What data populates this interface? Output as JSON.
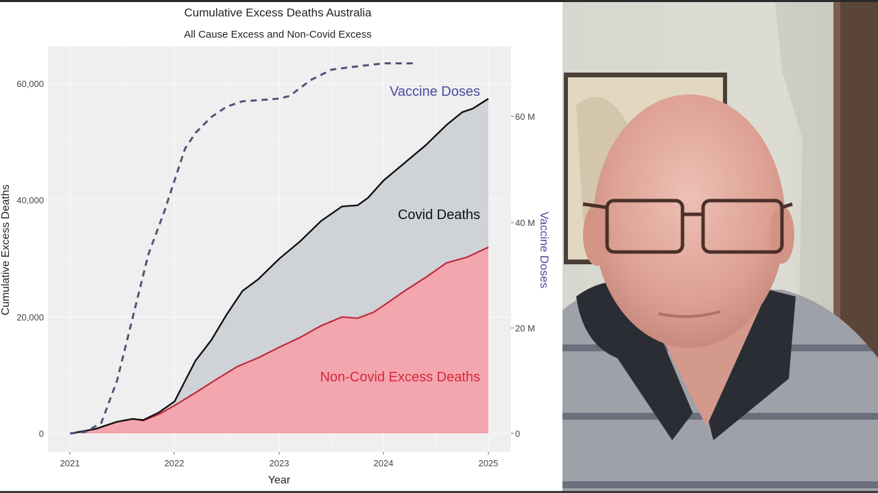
{
  "chart_data": {
    "type": "area",
    "title": "Cumulative Excess Deaths Australia",
    "subtitle": "All Cause Excess and Non-Covid Excess",
    "xlabel": "Year",
    "ylabel": "Cumulative Excess Deaths",
    "y2label": "Vaccine Doses",
    "x_ticks": [
      "2021",
      "2022",
      "2023",
      "2024",
      "2025"
    ],
    "y_ticks": [
      "0",
      "20,000",
      "40,000",
      "60,000"
    ],
    "y2_ticks": [
      "0",
      "20 M",
      "40 M",
      "60 M"
    ],
    "xlim": [
      2021,
      2025
    ],
    "ylim": [
      0,
      66000
    ],
    "y2lim": [
      0,
      72000000
    ],
    "grid": true,
    "legend_position": "inline-annotations",
    "annotations": [
      {
        "text": "Vaccine Doses",
        "color": "#4b4aa0"
      },
      {
        "text": "Covid Deaths",
        "color": "#111111"
      },
      {
        "text": "Non-Covid Excess Deaths",
        "color": "#d4283c"
      }
    ],
    "series": [
      {
        "name": "All Cause Excess Deaths (Covid Deaths band top)",
        "style": "solid black line, grey fill between lines",
        "color": "#111111",
        "fill": "#cfd2d6",
        "x": [
          2021.0,
          2021.1,
          2021.25,
          2021.45,
          2021.6,
          2021.7,
          2021.85,
          2022.0,
          2022.1,
          2022.2,
          2022.35,
          2022.5,
          2022.65,
          2022.8,
          2023.0,
          2023.2,
          2023.4,
          2023.6,
          2023.75,
          2023.85,
          2024.0,
          2024.2,
          2024.4,
          2024.6,
          2024.75,
          2024.85,
          2025.0
        ],
        "values": [
          0,
          300,
          800,
          2000,
          2500,
          2300,
          3600,
          5500,
          9000,
          12500,
          16000,
          20500,
          24500,
          26500,
          30000,
          33000,
          36500,
          39000,
          39200,
          40500,
          43500,
          46500,
          49500,
          53000,
          55200,
          55800,
          57500
        ]
      },
      {
        "name": "Non-Covid Excess Deaths",
        "style": "red line, pink fill to zero",
        "color": "#c0283a",
        "fill": "#f4a6ae",
        "x": [
          2021.0,
          2021.1,
          2021.25,
          2021.45,
          2021.6,
          2021.7,
          2021.85,
          2022.0,
          2022.2,
          2022.4,
          2022.6,
          2022.8,
          2023.0,
          2023.2,
          2023.4,
          2023.6,
          2023.75,
          2023.9,
          2024.0,
          2024.2,
          2024.4,
          2024.6,
          2024.8,
          2025.0
        ],
        "values": [
          0,
          300,
          800,
          2000,
          2500,
          2200,
          3300,
          4800,
          7000,
          9300,
          11500,
          13000,
          14800,
          16500,
          18500,
          20000,
          19800,
          20800,
          22000,
          24500,
          26800,
          29300,
          30300,
          32000
        ]
      },
      {
        "name": "Vaccine Doses",
        "axis": "right",
        "style": "dashed line",
        "color": "#54527a",
        "x": [
          2021.0,
          2021.15,
          2021.3,
          2021.45,
          2021.6,
          2021.75,
          2021.9,
          2022.0,
          2022.1,
          2022.2,
          2022.35,
          2022.5,
          2022.65,
          2022.8,
          2023.0,
          2023.1,
          2023.3,
          2023.5,
          2023.7,
          2024.0,
          2024.2,
          2024.3
        ],
        "values": [
          0,
          300000,
          2000000,
          10000000,
          22000000,
          34000000,
          42000000,
          48000000,
          54000000,
          57000000,
          60000000,
          62000000,
          63000000,
          63200000,
          63500000,
          64000000,
          67000000,
          69000000,
          69500000,
          70200000,
          70200000,
          70200000
        ]
      }
    ]
  },
  "video": {
    "subject": "webcam feed of presenter"
  }
}
